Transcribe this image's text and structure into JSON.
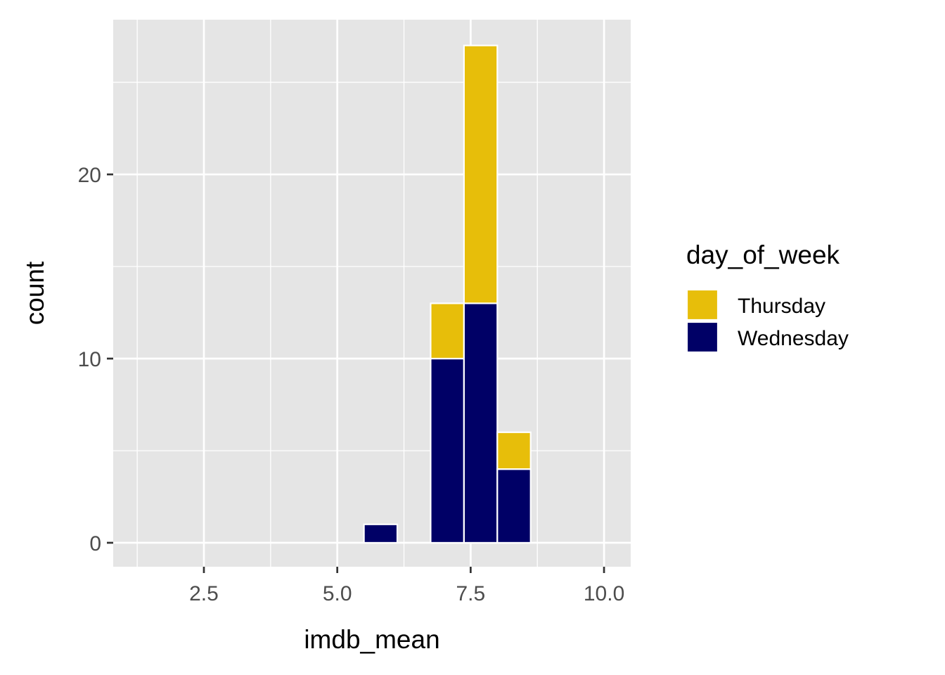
{
  "chart_data": {
    "type": "bar",
    "subtype": "stacked-histogram",
    "x_axis_title": "imdb_mean",
    "y_axis_title": "count",
    "x_ticks": [
      "2.5",
      "5.0",
      "7.5",
      "10.0"
    ],
    "y_ticks": [
      "0",
      "10",
      "20"
    ],
    "xlim": [
      0.8,
      10.5
    ],
    "ylim": [
      -1.3,
      28.4
    ],
    "bin_width": 0.625,
    "bins": [
      {
        "x_start": 5.5,
        "x_end": 6.125,
        "Wednesday": 1,
        "Thursday": 0
      },
      {
        "x_start": 6.75,
        "x_end": 7.375,
        "Wednesday": 10,
        "Thursday": 3
      },
      {
        "x_start": 7.375,
        "x_end": 8.0,
        "Wednesday": 13,
        "Thursday": 14
      },
      {
        "x_start": 8.0,
        "x_end": 8.625,
        "Wednesday": 4,
        "Thursday": 2
      }
    ],
    "series": [
      {
        "name": "Thursday",
        "color": "#E7BE0A"
      },
      {
        "name": "Wednesday",
        "color": "#000066"
      }
    ],
    "legend": {
      "title": "day_of_week",
      "position": "right"
    },
    "grid": true,
    "panel_background": "#E5E5E5",
    "bar_outline": "#FFFFFF"
  }
}
